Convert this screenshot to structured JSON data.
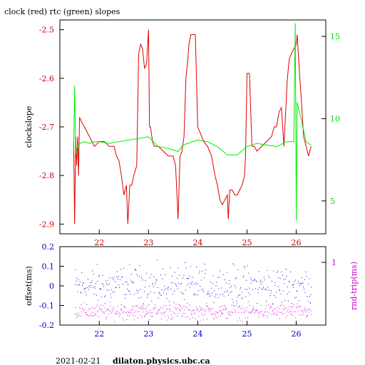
{
  "page": {
    "footer_date": "2021-02-21",
    "footer_host": "dilaton.physics.ubc.ca"
  },
  "chart_data": [
    {
      "type": "line",
      "title": "clock (red) rtc (green) slopes",
      "ylabel": "clockslope",
      "xlabel": "",
      "xlim": [
        21.2,
        26.6
      ],
      "x_ticks": [
        22,
        23,
        24,
        25,
        26
      ],
      "ylim": [
        -2.92,
        -2.48
      ],
      "y_ticks": [
        -2.9,
        -2.8,
        -2.7,
        -2.6,
        -2.5
      ],
      "y2lim": [
        3,
        16
      ],
      "y2_ticks": [
        5,
        10,
        15
      ],
      "grid": false,
      "series": [
        {
          "name": "clock",
          "color": "#dd0000",
          "axis": "left",
          "x": [
            21.48,
            21.5,
            21.52,
            21.54,
            21.56,
            21.58,
            21.6,
            21.64,
            21.7,
            21.8,
            21.9,
            22.0,
            22.1,
            22.2,
            22.3,
            22.35,
            22.4,
            22.45,
            22.5,
            22.55,
            22.58,
            22.62,
            22.66,
            22.7,
            22.76,
            22.8,
            22.84,
            22.88,
            22.92,
            22.96,
            23.0,
            23.02,
            23.04,
            23.08,
            23.12,
            23.2,
            23.3,
            23.4,
            23.5,
            23.55,
            23.6,
            23.64,
            23.68,
            23.72,
            23.76,
            23.8,
            23.82,
            23.86,
            23.9,
            23.95,
            24.0,
            24.04,
            24.08,
            24.12,
            24.2,
            24.28,
            24.35,
            24.4,
            24.45,
            24.5,
            24.55,
            24.6,
            24.62,
            24.65,
            24.7,
            24.75,
            24.8,
            24.85,
            24.9,
            24.95,
            24.97,
            25.0,
            25.05,
            25.1,
            25.15,
            25.2,
            25.3,
            25.4,
            25.5,
            25.55,
            25.6,
            25.65,
            25.7,
            25.75,
            25.8,
            25.82,
            25.86,
            25.9,
            25.95,
            26.0,
            26.02,
            26.06,
            26.1,
            26.15,
            26.2,
            26.25,
            26.3
          ],
          "y": [
            -2.73,
            -2.9,
            -2.72,
            -2.78,
            -2.72,
            -2.8,
            -2.68,
            -2.69,
            -2.7,
            -2.72,
            -2.74,
            -2.73,
            -2.73,
            -2.74,
            -2.74,
            -2.76,
            -2.77,
            -2.8,
            -2.84,
            -2.82,
            -2.9,
            -2.82,
            -2.82,
            -2.8,
            -2.78,
            -2.55,
            -2.53,
            -2.54,
            -2.58,
            -2.57,
            -2.5,
            -2.7,
            -2.7,
            -2.73,
            -2.74,
            -2.74,
            -2.75,
            -2.76,
            -2.76,
            -2.78,
            -2.89,
            -2.76,
            -2.75,
            -2.72,
            -2.6,
            -2.56,
            -2.53,
            -2.51,
            -2.51,
            -2.51,
            -2.7,
            -2.71,
            -2.72,
            -2.73,
            -2.74,
            -2.76,
            -2.8,
            -2.82,
            -2.85,
            -2.86,
            -2.85,
            -2.84,
            -2.89,
            -2.83,
            -2.83,
            -2.84,
            -2.84,
            -2.83,
            -2.82,
            -2.8,
            -2.76,
            -2.59,
            -2.59,
            -2.74,
            -2.74,
            -2.75,
            -2.74,
            -2.73,
            -2.72,
            -2.7,
            -2.7,
            -2.67,
            -2.66,
            -2.74,
            -2.64,
            -2.6,
            -2.56,
            -2.55,
            -2.54,
            -2.53,
            -2.51,
            -2.58,
            -2.64,
            -2.72,
            -2.74,
            -2.76,
            -2.74
          ]
        },
        {
          "name": "rtc",
          "color": "#00ee00",
          "axis": "right",
          "x": [
            21.48,
            21.5,
            21.52,
            21.56,
            21.6,
            21.7,
            21.8,
            21.9,
            22.0,
            22.2,
            22.4,
            22.6,
            22.8,
            23.0,
            23.2,
            23.4,
            23.6,
            23.7,
            23.8,
            24.0,
            24.2,
            24.4,
            24.6,
            24.8,
            25.0,
            25.2,
            25.4,
            25.6,
            25.8,
            25.95,
            25.98,
            26.0,
            26.02,
            26.2,
            26.3
          ],
          "y": [
            8.1,
            12.0,
            7.8,
            8.4,
            8.5,
            8.6,
            8.5,
            8.6,
            8.6,
            8.5,
            8.6,
            8.7,
            8.8,
            8.9,
            8.3,
            8.2,
            8.0,
            8.4,
            8.5,
            8.7,
            8.6,
            8.3,
            7.8,
            7.8,
            8.3,
            8.5,
            8.4,
            8.3,
            8.6,
            8.6,
            15.8,
            3.8,
            11.0,
            8.6,
            8.4
          ]
        }
      ]
    },
    {
      "type": "scatter",
      "title": "",
      "ylabel": "offset(ms)",
      "y2label": "rnd-trip(ms)",
      "xlabel": "",
      "xlim": [
        21.2,
        26.6
      ],
      "x_ticks": [
        22,
        23,
        24,
        25,
        26
      ],
      "ylim": [
        -0.2,
        0.2
      ],
      "y_ticks": [
        -0.2,
        -0.1,
        0,
        0.1,
        0.2
      ],
      "y_tick_labels": [
        "-0.2",
        "-0.1",
        "0",
        "0.1",
        "0.2"
      ],
      "y2_ticks": [
        1
      ],
      "grid": false,
      "series": [
        {
          "name": "offset",
          "color": "#0000dd",
          "axis": "left",
          "x_range": [
            21.5,
            26.3
          ],
          "center": 0.0,
          "spread": 0.05
        },
        {
          "name": "rnd-trip",
          "color": "#dd00dd",
          "axis": "left",
          "x_range": [
            21.5,
            26.3
          ],
          "center": -0.13,
          "spread": 0.02
        }
      ]
    }
  ]
}
